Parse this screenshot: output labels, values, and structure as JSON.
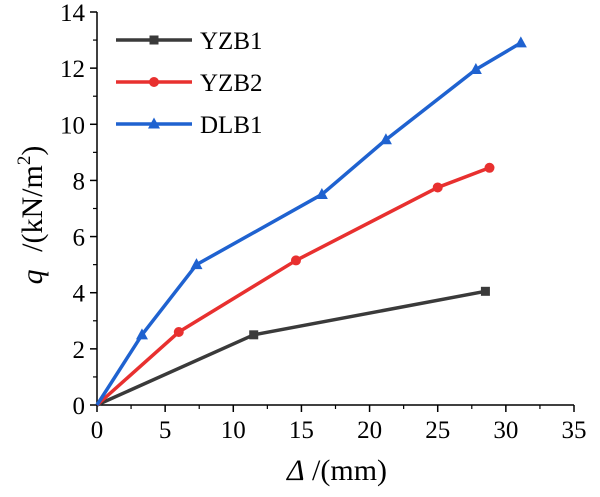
{
  "chart_data": {
    "type": "line",
    "xlabel_symbol": "Δ",
    "xlabel_unit": "/(mm)",
    "ylabel_symbol": "q",
    "ylabel_unit_prefix": "/(kN/m",
    "ylabel_unit_exponent": "2",
    "ylabel_unit_suffix": ")",
    "xlim": [
      0,
      35
    ],
    "ylim": [
      0,
      14
    ],
    "x_ticks": [
      "0",
      "5",
      "10",
      "15",
      "20",
      "25",
      "30",
      "35"
    ],
    "y_ticks": [
      "0",
      "2",
      "4",
      "6",
      "8",
      "10",
      "12",
      "14"
    ],
    "legend_position": "top-left",
    "grid": false,
    "series": [
      {
        "name": "YZB1",
        "color": "#3a3a3a",
        "marker": "square",
        "x": [
          0,
          11.5,
          28.5
        ],
        "y": [
          0,
          2.5,
          4.05
        ]
      },
      {
        "name": "YZB2",
        "color": "#e8302f",
        "marker": "circle",
        "x": [
          0,
          6.0,
          14.6,
          25.0,
          28.8
        ],
        "y": [
          0,
          2.6,
          5.15,
          7.75,
          8.45
        ]
      },
      {
        "name": "DLB1",
        "color": "#1f62d0",
        "marker": "triangle",
        "x": [
          0,
          3.3,
          7.3,
          16.5,
          21.2,
          27.8,
          31.1
        ],
        "y": [
          0,
          2.5,
          5.0,
          7.5,
          9.45,
          11.95,
          12.9
        ]
      }
    ]
  }
}
